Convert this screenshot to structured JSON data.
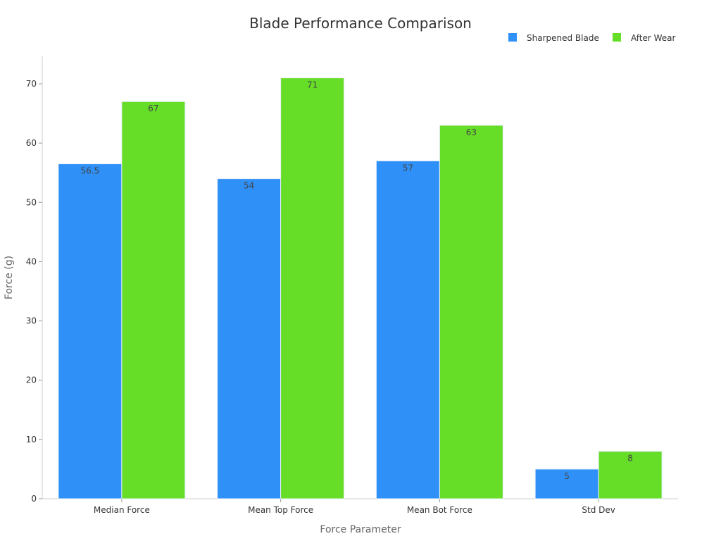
{
  "chart_data": {
    "type": "bar",
    "title": "Blade Performance Comparison",
    "xlabel": "Force Parameter",
    "ylabel": "Force (g)",
    "categories": [
      "Median Force",
      "Mean Top Force",
      "Mean Bot Force",
      "Std Dev"
    ],
    "series": [
      {
        "name": "Sharpened Blade",
        "color": "#2f90f7",
        "values": [
          56.5,
          54,
          57,
          5
        ]
      },
      {
        "name": "After Wear",
        "color": "#66dd27",
        "values": [
          67,
          71,
          63,
          8
        ]
      }
    ],
    "ylim": [
      0,
      75
    ],
    "yticks": [
      0,
      10,
      20,
      30,
      40,
      50,
      60,
      70
    ],
    "legend_position": "top-right",
    "grid": false
  }
}
